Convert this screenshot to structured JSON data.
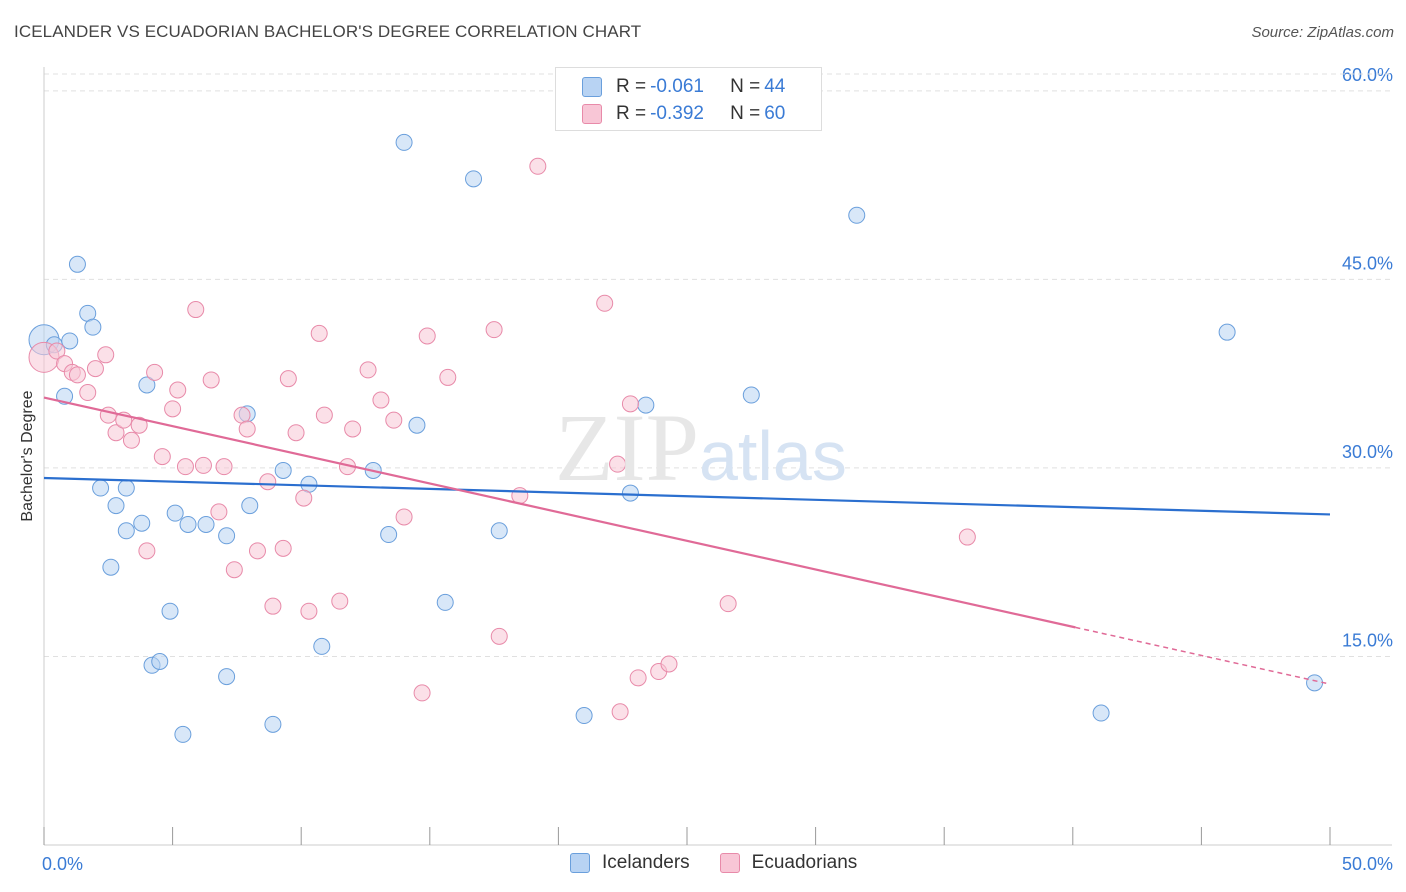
{
  "title": "ICELANDER VS ECUADORIAN BACHELOR'S DEGREE CORRELATION CHART",
  "source": "Source: ZipAtlas.com",
  "watermark": {
    "zip": "ZIP",
    "atlas": "atlas"
  },
  "colors": {
    "blue_fill": "#b8d3f3",
    "blue_stroke": "#6a9fdc",
    "blue_line": "#2b6fcf",
    "pink_fill": "#f8c6d6",
    "pink_stroke": "#e88aa9",
    "pink_line": "#e06a97",
    "axis_text": "#3a7bd5",
    "grid": "#e0e0e0"
  },
  "legend_top": {
    "rows": [
      {
        "r_label": "R = ",
        "r_value": "-0.061",
        "n_label": "N = ",
        "n_value": "44"
      },
      {
        "r_label": "R = ",
        "r_value": "-0.392",
        "n_label": "N = ",
        "n_value": "60"
      }
    ]
  },
  "legend_bottom": [
    "Icelanders",
    "Ecuadorians"
  ],
  "chart_data": {
    "type": "scatter",
    "title": "ICELANDER VS ECUADORIAN BACHELOR'S DEGREE CORRELATION CHART",
    "xlabel": "",
    "ylabel": "Bachelor's Degree",
    "xlim": [
      0,
      50
    ],
    "ylim": [
      0,
      61.5
    ],
    "x_tick_labels": [
      "0.0%",
      "50.0%"
    ],
    "y_ticks": [
      15,
      30,
      45,
      60
    ],
    "y_tick_labels": [
      "15.0%",
      "30.0%",
      "45.0%",
      "60.0%"
    ],
    "x_minor_ticks": [
      0,
      5,
      10,
      15,
      20,
      25,
      30,
      35,
      40,
      45,
      50
    ],
    "grid": true,
    "legend": "top-center",
    "series": [
      {
        "name": "Icelanders",
        "r": -0.061,
        "n": 44,
        "trend": {
          "x0": 0,
          "y0": 29.2,
          "x1": 50,
          "y1": 26.3,
          "solid_until": 50
        },
        "points": [
          [
            0.0,
            40.2
          ],
          [
            0.4,
            39.8
          ],
          [
            1.0,
            40.1
          ],
          [
            1.3,
            46.2
          ],
          [
            1.7,
            42.3
          ],
          [
            1.9,
            41.2
          ],
          [
            0.8,
            35.7
          ],
          [
            2.2,
            28.4
          ],
          [
            2.8,
            27.0
          ],
          [
            3.2,
            28.4
          ],
          [
            3.2,
            25.0
          ],
          [
            3.8,
            25.6
          ],
          [
            2.6,
            22.1
          ],
          [
            4.0,
            36.6
          ],
          [
            4.2,
            14.3
          ],
          [
            4.5,
            14.6
          ],
          [
            4.9,
            18.6
          ],
          [
            5.1,
            26.4
          ],
          [
            5.6,
            25.5
          ],
          [
            5.4,
            8.8
          ],
          [
            6.3,
            25.5
          ],
          [
            7.1,
            24.6
          ],
          [
            7.1,
            13.4
          ],
          [
            7.9,
            34.3
          ],
          [
            8.0,
            27.0
          ],
          [
            8.9,
            9.6
          ],
          [
            9.3,
            29.8
          ],
          [
            10.3,
            28.7
          ],
          [
            10.8,
            15.8
          ],
          [
            12.8,
            29.8
          ],
          [
            13.4,
            24.7
          ],
          [
            14.0,
            55.9
          ],
          [
            14.5,
            33.4
          ],
          [
            15.6,
            19.3
          ],
          [
            16.7,
            53.0
          ],
          [
            17.7,
            25.0
          ],
          [
            21.0,
            10.3
          ],
          [
            22.8,
            28.0
          ],
          [
            23.4,
            35.0
          ],
          [
            27.5,
            35.8
          ],
          [
            31.6,
            50.1
          ],
          [
            41.1,
            10.5
          ],
          [
            46.0,
            40.8
          ],
          [
            49.4,
            12.9
          ]
        ]
      },
      {
        "name": "Ecuadorians",
        "r": -0.392,
        "n": 60,
        "trend": {
          "x0": 0,
          "y0": 35.6,
          "x1": 50,
          "y1": 12.8,
          "solid_until": 40.1
        },
        "points": [
          [
            0.0,
            38.8
          ],
          [
            0.5,
            39.3
          ],
          [
            0.8,
            38.3
          ],
          [
            1.1,
            37.6
          ],
          [
            1.3,
            37.4
          ],
          [
            1.7,
            36.0
          ],
          [
            2.0,
            37.9
          ],
          [
            2.4,
            39.0
          ],
          [
            2.5,
            34.2
          ],
          [
            2.8,
            32.8
          ],
          [
            3.1,
            33.8
          ],
          [
            3.4,
            32.2
          ],
          [
            3.7,
            33.4
          ],
          [
            4.0,
            23.4
          ],
          [
            4.3,
            37.6
          ],
          [
            4.6,
            30.9
          ],
          [
            5.0,
            34.7
          ],
          [
            5.2,
            36.2
          ],
          [
            5.5,
            30.1
          ],
          [
            5.9,
            42.6
          ],
          [
            6.2,
            30.2
          ],
          [
            6.5,
            37.0
          ],
          [
            6.8,
            26.5
          ],
          [
            7.0,
            30.1
          ],
          [
            7.4,
            21.9
          ],
          [
            7.7,
            34.2
          ],
          [
            7.9,
            33.1
          ],
          [
            8.3,
            23.4
          ],
          [
            8.7,
            28.9
          ],
          [
            8.9,
            19.0
          ],
          [
            9.3,
            23.6
          ],
          [
            9.5,
            37.1
          ],
          [
            9.8,
            32.8
          ],
          [
            10.1,
            27.6
          ],
          [
            10.3,
            18.6
          ],
          [
            10.7,
            40.7
          ],
          [
            10.9,
            34.2
          ],
          [
            11.5,
            19.4
          ],
          [
            11.8,
            30.1
          ],
          [
            12.0,
            33.1
          ],
          [
            12.6,
            37.8
          ],
          [
            13.1,
            35.4
          ],
          [
            13.6,
            33.8
          ],
          [
            14.0,
            26.1
          ],
          [
            14.7,
            12.1
          ],
          [
            14.9,
            40.5
          ],
          [
            15.7,
            37.2
          ],
          [
            17.5,
            41.0
          ],
          [
            17.7,
            16.6
          ],
          [
            18.5,
            27.8
          ],
          [
            19.2,
            54.0
          ],
          [
            21.8,
            43.1
          ],
          [
            22.3,
            30.3
          ],
          [
            22.4,
            10.6
          ],
          [
            22.8,
            35.1
          ],
          [
            23.1,
            13.3
          ],
          [
            23.9,
            13.8
          ],
          [
            24.3,
            14.4
          ],
          [
            26.6,
            19.2
          ],
          [
            35.9,
            24.5
          ]
        ]
      }
    ]
  }
}
